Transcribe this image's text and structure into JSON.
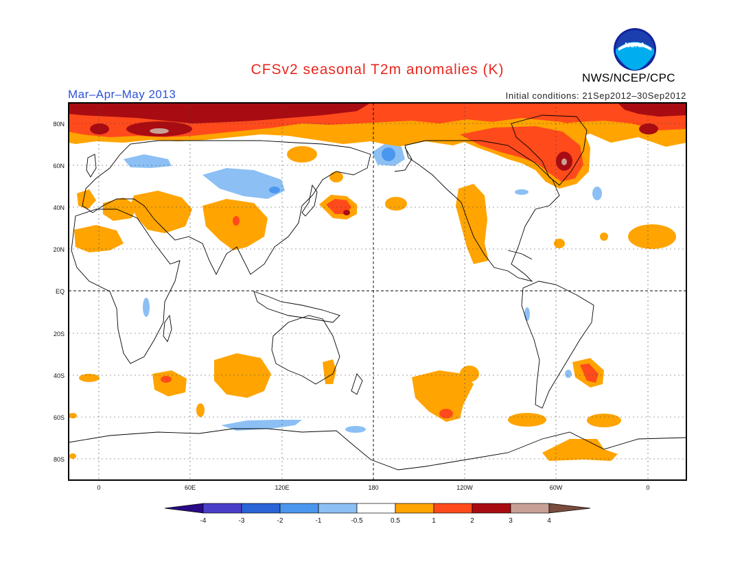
{
  "title": "CFSv2 seasonal T2m anomalies (K)",
  "season": "Mar–Apr–May 2013",
  "initial_conditions": "Initial conditions: 21Sep2012–30Sep2012",
  "agency": "NWS/NCEP/CPC",
  "logo_text": "NOAA",
  "lat_labels": [
    "80N",
    "60N",
    "40N",
    "20N",
    "EQ",
    "20S",
    "40S",
    "60S",
    "80S"
  ],
  "lon_labels": [
    "0",
    "60E",
    "120E",
    "180",
    "120W",
    "60W",
    "0"
  ],
  "colorbar": {
    "labels": [
      "-4",
      "-3",
      "-2",
      "-1",
      "-0.5",
      "0.5",
      "1",
      "2",
      "3",
      "4"
    ],
    "colors": [
      "#2a0b86",
      "#4a3ec8",
      "#2a64d6",
      "#4b96ef",
      "#8cc0f5",
      "#ffffff",
      "#ffa400",
      "#ff4a1c",
      "#a80c12",
      "#c9a096",
      "#7a4c3e"
    ]
  },
  "colors": {
    "title": "#e8261c",
    "season": "#2b52d6",
    "orange": "#ffa400",
    "red": "#ff4a1c",
    "darkred": "#a80c12",
    "tan": "#c9a096",
    "lightblue": "#8cc0f5",
    "blue": "#4b96ef"
  }
}
